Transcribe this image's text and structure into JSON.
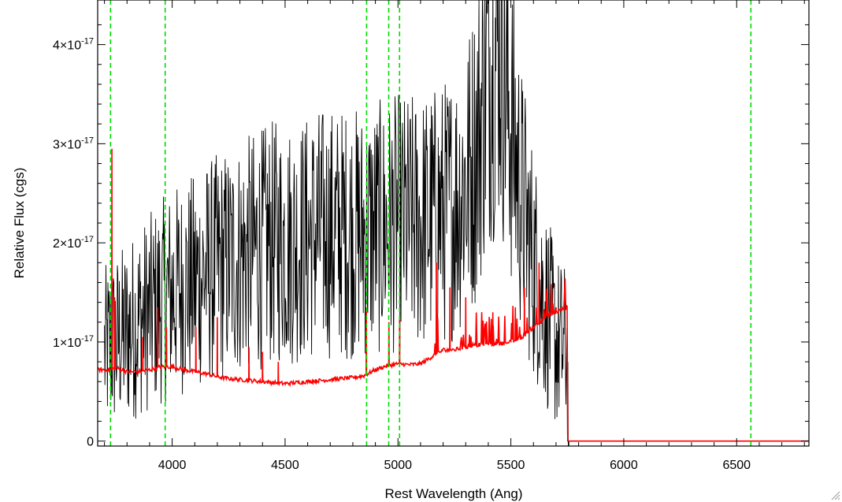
{
  "chart_data": {
    "type": "line",
    "title": "",
    "xlabel": "Rest Wavelength (Ang)",
    "ylabel": "Relative Flux (cgs)",
    "xlim": [
      3670,
      6820
    ],
    "ylim": [
      -0.05,
      4.45
    ],
    "y_unit_exponent": "-17",
    "grid": false,
    "legend": "none",
    "x_ticks": [
      {
        "value": 4000,
        "label": "4000"
      },
      {
        "value": 4500,
        "label": "4500"
      },
      {
        "value": 5000,
        "label": "5000"
      },
      {
        "value": 5500,
        "label": "5500"
      },
      {
        "value": 6000,
        "label": "6000"
      },
      {
        "value": 6500,
        "label": "6500"
      }
    ],
    "y_ticks": [
      {
        "value": 0,
        "mantissa": "0",
        "exponent": ""
      },
      {
        "value": 1,
        "mantissa": "1×10",
        "exponent": "-17"
      },
      {
        "value": 2,
        "mantissa": "2×10",
        "exponent": "-17"
      },
      {
        "value": 3,
        "mantissa": "3×10",
        "exponent": "-17"
      },
      {
        "value": 4,
        "mantissa": "4×10",
        "exponent": "-17"
      }
    ],
    "reference_lines_x": [
      3727,
      3969,
      4861,
      4959,
      5007,
      6563
    ],
    "series": [
      {
        "color": "#000000",
        "noise": "high",
        "x": [
          3700,
          3750,
          3800,
          3850,
          3900,
          3950,
          4000,
          4050,
          4100,
          4150,
          4200,
          4250,
          4300,
          4350,
          4400,
          4450,
          4500,
          4550,
          4600,
          4650,
          4700,
          4750,
          4800,
          4850,
          4900,
          4950,
          5000,
          5050,
          5100,
          5150,
          5200,
          5250,
          5300,
          5350,
          5400,
          5450,
          5500,
          5550,
          5600,
          5650,
          5700,
          5750,
          5755,
          5800,
          5900,
          6000,
          6100,
          6200,
          6300,
          6400,
          6500,
          6600,
          6700,
          6800
        ],
        "y": [
          0.9,
          1.0,
          1.1,
          1.2,
          1.3,
          1.4,
          1.5,
          1.55,
          1.6,
          1.7,
          1.75,
          1.8,
          1.85,
          1.9,
          1.95,
          2.0,
          2.0,
          2.0,
          2.05,
          2.1,
          2.1,
          2.1,
          2.1,
          2.1,
          2.15,
          2.15,
          2.2,
          2.2,
          2.2,
          2.25,
          2.3,
          2.4,
          2.6,
          3.0,
          3.8,
          4.1,
          3.2,
          2.4,
          1.8,
          1.4,
          1.0,
          0.9,
          0.0,
          0.0,
          0.0,
          0.0,
          0.0,
          0.0,
          0.0,
          0.0,
          0.0,
          0.0,
          0.0,
          0.0
        ]
      },
      {
        "color": "#ff0000",
        "noise": "low",
        "x": [
          3670,
          3700,
          3730,
          3750,
          3800,
          3850,
          3900,
          3950,
          4000,
          4050,
          4100,
          4150,
          4200,
          4250,
          4300,
          4350,
          4400,
          4450,
          4500,
          4550,
          4600,
          4650,
          4700,
          4750,
          4800,
          4850,
          4900,
          4950,
          5000,
          5050,
          5100,
          5150,
          5200,
          5250,
          5300,
          5350,
          5400,
          5450,
          5500,
          5550,
          5600,
          5650,
          5700,
          5750,
          5752,
          5800,
          6000,
          6200,
          6400,
          6600,
          6820
        ],
        "y": [
          0.72,
          0.72,
          0.72,
          0.74,
          0.7,
          0.7,
          0.72,
          0.75,
          0.75,
          0.72,
          0.7,
          0.68,
          0.65,
          0.63,
          0.62,
          0.61,
          0.6,
          0.59,
          0.58,
          0.59,
          0.6,
          0.61,
          0.62,
          0.63,
          0.64,
          0.66,
          0.72,
          0.76,
          0.78,
          0.77,
          0.78,
          0.85,
          0.92,
          0.92,
          0.95,
          0.97,
          0.98,
          0.98,
          1.0,
          1.05,
          1.15,
          1.25,
          1.3,
          1.35,
          0.0,
          0.0,
          0.0,
          0.0,
          0.0,
          0.0,
          0.0
        ],
        "spikes": [
          {
            "x": 3733,
            "y": 2.95
          },
          {
            "x": 3745,
            "y": 1.45
          },
          {
            "x": 3870,
            "y": 1.05
          },
          {
            "x": 3935,
            "y": 1.35
          },
          {
            "x": 3975,
            "y": 1.15
          },
          {
            "x": 4105,
            "y": 1.15
          },
          {
            "x": 4200,
            "y": 1.25
          },
          {
            "x": 4340,
            "y": 0.95
          },
          {
            "x": 4400,
            "y": 0.9
          },
          {
            "x": 4470,
            "y": 0.8
          },
          {
            "x": 4860,
            "y": 1.35
          },
          {
            "x": 4960,
            "y": 1.2
          },
          {
            "x": 5007,
            "y": 1.25
          },
          {
            "x": 5170,
            "y": 1.8
          },
          {
            "x": 5230,
            "y": 1.55
          },
          {
            "x": 5300,
            "y": 1.45
          },
          {
            "x": 5420,
            "y": 1.3
          },
          {
            "x": 5520,
            "y": 1.35
          },
          {
            "x": 5560,
            "y": 1.55
          },
          {
            "x": 5625,
            "y": 1.8
          },
          {
            "x": 5700,
            "y": 1.35
          }
        ]
      }
    ],
    "reference_color": "#00dd00"
  }
}
